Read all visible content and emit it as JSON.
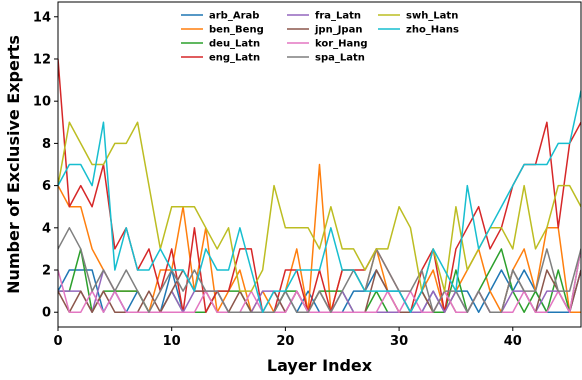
{
  "chart_data": {
    "type": "line",
    "xlabel": "Layer Index",
    "ylabel": "Number of Exclusive Experts",
    "xlim": [
      0,
      46
    ],
    "ylim": [
      -0.7,
      14.7
    ],
    "xticks": [
      0,
      10,
      20,
      30,
      40
    ],
    "yticks": [
      0,
      2,
      4,
      6,
      8,
      10,
      12,
      14
    ],
    "grid": false,
    "legend_position": "top-center",
    "legend_columns": 3,
    "series": [
      {
        "name": "arb_Arab",
        "color": "#1f77b4",
        "values": [
          1,
          2,
          2,
          2,
          0,
          1,
          0,
          1,
          0,
          0,
          2,
          0,
          0,
          0,
          1,
          0,
          0,
          0,
          0,
          0,
          1,
          0,
          1,
          0,
          0,
          0,
          1,
          1,
          2,
          1,
          1,
          0,
          0,
          1,
          0,
          1,
          1,
          0,
          1,
          2,
          1,
          2,
          1,
          0,
          0,
          0,
          2
        ]
      },
      {
        "name": "ben_Beng",
        "color": "#ff7f0e",
        "values": [
          6,
          5,
          5,
          3,
          2,
          1,
          1,
          1,
          0,
          2,
          2,
          5,
          1,
          4,
          0,
          1,
          2,
          0,
          1,
          0,
          1,
          3,
          0,
          7,
          0,
          2,
          2,
          1,
          3,
          1,
          0,
          0,
          1,
          2,
          0,
          1,
          2,
          3,
          1,
          0,
          2,
          3,
          1,
          4,
          4,
          0,
          0
        ]
      },
      {
        "name": "deu_Latn",
        "color": "#2ca02c",
        "values": [
          1,
          1,
          3,
          0,
          1,
          1,
          1,
          1,
          0,
          0,
          1,
          0,
          0,
          0,
          1,
          1,
          1,
          0,
          0,
          0,
          1,
          1,
          0,
          1,
          1,
          1,
          0,
          0,
          1,
          0,
          0,
          0,
          1,
          0,
          0,
          2,
          0,
          1,
          2,
          3,
          1,
          0,
          1,
          0,
          2,
          0,
          3
        ]
      },
      {
        "name": "eng_Latn",
        "color": "#d62728",
        "values": [
          12,
          5,
          6,
          5,
          7,
          3,
          4,
          2,
          3,
          1,
          3,
          0,
          4,
          0,
          1,
          1,
          3,
          3,
          0,
          0,
          2,
          2,
          0,
          2,
          0,
          2,
          2,
          2,
          3,
          2,
          1,
          0,
          2,
          3,
          0,
          3,
          4,
          5,
          3,
          4,
          6,
          7,
          7,
          9,
          4,
          8,
          9
        ]
      },
      {
        "name": "fra_Latn",
        "color": "#9467bd",
        "values": [
          1,
          1,
          1,
          0,
          2,
          1,
          0,
          0,
          0,
          0,
          1,
          0,
          1,
          1,
          1,
          0,
          0,
          0,
          1,
          1,
          0,
          1,
          0,
          0,
          0,
          1,
          0,
          0,
          0,
          0,
          0,
          0,
          0,
          1,
          0,
          1,
          0,
          1,
          0,
          0,
          1,
          1,
          0,
          1,
          1,
          0,
          2
        ]
      },
      {
        "name": "jpn_Jpan",
        "color": "#8c564b",
        "values": [
          1,
          0,
          1,
          0,
          1,
          0,
          0,
          0,
          1,
          0,
          1,
          2,
          1,
          1,
          0,
          0,
          1,
          0,
          0,
          1,
          0,
          1,
          0,
          1,
          0,
          0,
          0,
          0,
          2,
          1,
          0,
          0,
          1,
          0,
          1,
          0,
          0,
          1,
          0,
          0,
          2,
          1,
          0,
          2,
          1,
          0,
          2
        ]
      },
      {
        "name": "kor_Hang",
        "color": "#e377c2",
        "values": [
          2,
          0,
          0,
          1,
          0,
          1,
          0,
          0,
          0,
          0,
          0,
          0,
          0,
          1,
          0,
          0,
          0,
          1,
          0,
          0,
          0,
          1,
          0,
          0,
          0,
          0,
          0,
          0,
          0,
          1,
          0,
          1,
          0,
          0,
          1,
          0,
          0,
          1,
          0,
          0,
          0,
          1,
          0,
          0,
          1,
          0,
          3
        ]
      },
      {
        "name": "spa_Latn",
        "color": "#7f7f7f",
        "values": [
          3,
          4,
          3,
          1,
          2,
          1,
          2,
          1,
          0,
          1,
          2,
          1,
          2,
          1,
          1,
          0,
          0,
          0,
          0,
          0,
          1,
          0,
          0,
          1,
          0,
          1,
          2,
          1,
          3,
          2,
          1,
          1,
          2,
          0,
          1,
          1,
          0,
          1,
          0,
          0,
          2,
          1,
          1,
          3,
          1,
          1,
          3
        ]
      },
      {
        "name": "swh_Latn",
        "color": "#bcbd22",
        "values": [
          6,
          9,
          8,
          7,
          7,
          8,
          8,
          9,
          6,
          3,
          5,
          5,
          5,
          4,
          3,
          4,
          1,
          1,
          2,
          6,
          4,
          4,
          4,
          3,
          5,
          3,
          3,
          2,
          3,
          3,
          5,
          4,
          1,
          3,
          1,
          5,
          2,
          3,
          4,
          4,
          3,
          6,
          3,
          4,
          6,
          6,
          5
        ]
      },
      {
        "name": "zho_Hans",
        "color": "#17becf",
        "values": [
          6,
          7,
          7,
          6,
          9,
          2,
          4,
          2,
          2,
          3,
          2,
          2,
          1,
          3,
          2,
          2,
          4,
          2,
          0,
          1,
          1,
          2,
          2,
          2,
          4,
          2,
          2,
          1,
          1,
          1,
          1,
          0,
          1,
          3,
          2,
          1,
          6,
          3,
          4,
          5,
          6,
          7,
          7,
          7,
          8,
          8,
          10.5
        ]
      }
    ]
  }
}
